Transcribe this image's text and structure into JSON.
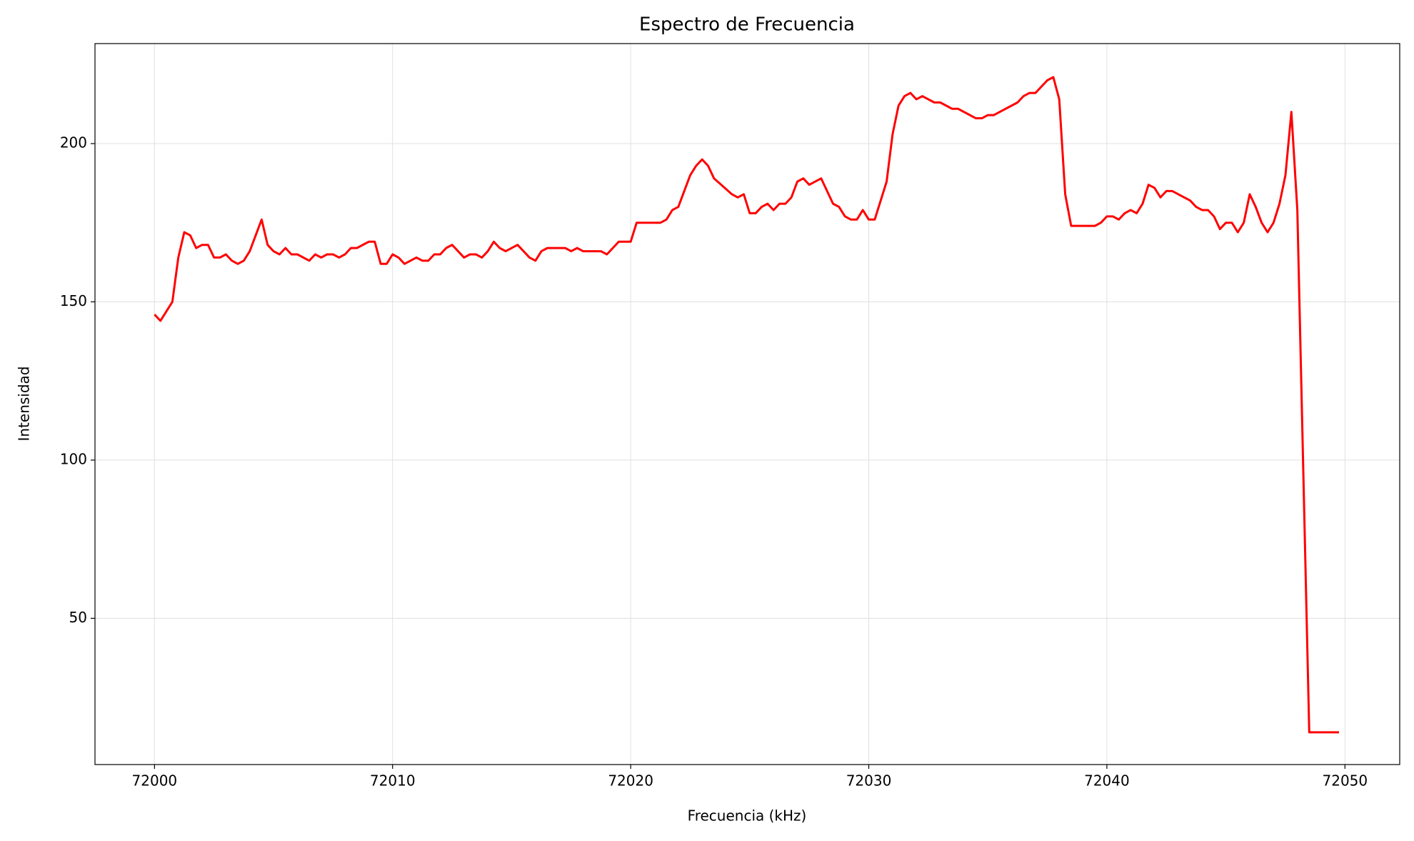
{
  "chart_data": {
    "type": "line",
    "title": "Espectro de Frecuencia",
    "xlabel": "Frecuencia (kHz)",
    "ylabel": "Intensidad",
    "x": [
      72000,
      72000.25,
      72000.75,
      72001,
      72001.25,
      72001.5,
      72001.75,
      72002,
      72002.25,
      72002.5,
      72002.75,
      72003,
      72003.25,
      72003.5,
      72003.75,
      72004,
      72004.5,
      72004.75,
      72005,
      72005.25,
      72005.5,
      72005.75,
      72006,
      72006.5,
      72006.75,
      72007,
      72007.25,
      72007.5,
      72007.75,
      72008,
      72008.25,
      72008.5,
      72009,
      72009.25,
      72009.5,
      72009.75,
      72010,
      72010.25,
      72010.5,
      72011,
      72011.25,
      72011.5,
      72011.75,
      72012,
      72012.25,
      72012.5,
      72013,
      72013.25,
      72013.5,
      72013.75,
      72014,
      72014.25,
      72014.5,
      72014.75,
      72015.25,
      72015.75,
      72016,
      72016.25,
      72016.5,
      72017.25,
      72017.5,
      72017.75,
      72018,
      72018.75,
      72019,
      72019.5,
      72020,
      72020.25,
      72021.25,
      72021.5,
      72021.75,
      72022,
      72022.5,
      72022.75,
      72023,
      72023.25,
      72023.5,
      72024.25,
      72024.5,
      72024.75,
      72025,
      72025.25,
      72025.5,
      72025.75,
      72026,
      72026.25,
      72026.5,
      72026.75,
      72027,
      72027.25,
      72027.5,
      72028,
      72028.5,
      72028.75,
      72029,
      72029.25,
      72029.5,
      72029.75,
      72030,
      72030.25,
      72030.75,
      72031,
      72031.25,
      72031.5,
      72031.75,
      72032,
      72032.25,
      72032.75,
      72033,
      72033.5,
      72033.75,
      72034.5,
      72034.75,
      72035,
      72035.25,
      72036.25,
      72036.5,
      72036.75,
      72037,
      72037.5,
      72037.75,
      72038,
      72038.25,
      72038.5,
      72039.5,
      72039.75,
      72040,
      72040.25,
      72040.5,
      72040.75,
      72041,
      72041.25,
      72041.5,
      72041.75,
      72042,
      72042.25,
      72042.5,
      72042.75,
      72043.5,
      72043.75,
      72044,
      72044.25,
      72044.5,
      72044.75,
      72045,
      72045.25,
      72045.5,
      72045.75,
      72046,
      72046.25,
      72046.5,
      72046.75,
      72047,
      72047.25,
      72047.5,
      72047.75,
      72048,
      72048.5,
      72049.75
    ],
    "series": [
      {
        "name": "Intensidad",
        "color": "#ff0000",
        "values": [
          146,
          144,
          150,
          164,
          172,
          171,
          167,
          168,
          168,
          164,
          164,
          165,
          163,
          162,
          163,
          166,
          176,
          168,
          166,
          165,
          167,
          165,
          165,
          163,
          165,
          164,
          165,
          165,
          164,
          165,
          167,
          167,
          169,
          169,
          162,
          162,
          165,
          164,
          162,
          164,
          163,
          163,
          165,
          165,
          167,
          168,
          164,
          165,
          165,
          164,
          166,
          169,
          167,
          166,
          168,
          164,
          163,
          166,
          167,
          167,
          166,
          167,
          166,
          166,
          165,
          169,
          169,
          175,
          175,
          176,
          179,
          180,
          190,
          193,
          195,
          193,
          189,
          184,
          183,
          184,
          178,
          178,
          180,
          181,
          179,
          181,
          181,
          183,
          188,
          189,
          187,
          189,
          181,
          180,
          177,
          176,
          176,
          179,
          176,
          176,
          188,
          203,
          212,
          215,
          216,
          214,
          215,
          213,
          213,
          211,
          211,
          208,
          208,
          209,
          209,
          213,
          215,
          216,
          216,
          220,
          221,
          214,
          184,
          174,
          174,
          175,
          177,
          177,
          176,
          178,
          179,
          178,
          181,
          187,
          186,
          183,
          185,
          185,
          182,
          180,
          179,
          179,
          177,
          173,
          175,
          175,
          172,
          175,
          184,
          180,
          175,
          172,
          175,
          181,
          190,
          210,
          179,
          14,
          14
        ]
      }
    ],
    "xlim": [
      71997.5,
      72052.3
    ],
    "ylim": [
      3.8,
      231.6
    ],
    "xticks": [
      72000,
      72010,
      72020,
      72030,
      72040,
      72050
    ],
    "yticks": [
      50,
      100,
      150,
      200
    ],
    "grid": true
  }
}
